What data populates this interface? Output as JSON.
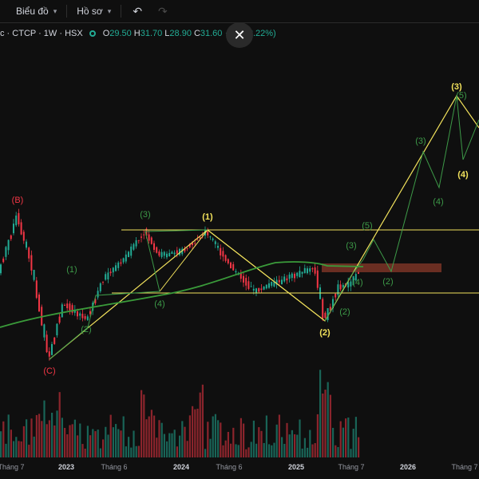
{
  "toolbar": {
    "chart_menu": "Biểu đồ",
    "profile_menu": "Hồ sơ",
    "undo_icon": "undo-icon",
    "redo_icon": "redo-icon"
  },
  "legend": {
    "symbol": "c · CTCP · 1W · HSX",
    "o_label": "O",
    "o_value": "29.50",
    "h_label": "H",
    "h_value": "31.70",
    "l_label": "L",
    "l_value": "28.90",
    "c_label": "C",
    "c_value": "31.60",
    "change": "+2.4 (8.22%)"
  },
  "close_label": "✕",
  "colors": {
    "up": "#22ab94",
    "down": "#f23645",
    "wave_yellow": "#f2e25c",
    "wave_green": "#3d9a48",
    "ma": "#3a9b3a"
  },
  "time_axis": [
    {
      "text": "Tháng 7",
      "bold": false
    },
    {
      "text": "2023",
      "bold": true
    },
    {
      "text": "Tháng 6",
      "bold": false
    },
    {
      "text": "2024",
      "bold": true
    },
    {
      "text": "Tháng 6",
      "bold": false
    },
    {
      "text": "2025",
      "bold": true
    },
    {
      "text": "Tháng 7",
      "bold": false
    },
    {
      "text": "2026",
      "bold": true
    },
    {
      "text": "Tháng 7",
      "bold": false
    }
  ],
  "wave_labels": [
    {
      "text": "(B)",
      "color": "red"
    },
    {
      "text": "(C)",
      "color": "red"
    },
    {
      "text": "(1)",
      "color": "green"
    },
    {
      "text": "(2)",
      "color": "green"
    },
    {
      "text": "(3)",
      "color": "green"
    },
    {
      "text": "(4)",
      "color": "green"
    },
    {
      "text": "(1)",
      "color": "yellow"
    },
    {
      "text": "(2)",
      "color": "yellow"
    },
    {
      "text": "(3)",
      "color": "green"
    },
    {
      "text": "(4)",
      "color": "green"
    },
    {
      "text": "(5)",
      "color": "green"
    },
    {
      "text": "(2)",
      "color": "green"
    },
    {
      "text": "(2)",
      "color": "green"
    },
    {
      "text": "(3)",
      "color": "green"
    },
    {
      "text": "(4)",
      "color": "green"
    },
    {
      "text": "(5)",
      "color": "green"
    },
    {
      "text": "(3)",
      "color": "yellow"
    },
    {
      "text": "(4)",
      "color": "yellow"
    }
  ]
}
